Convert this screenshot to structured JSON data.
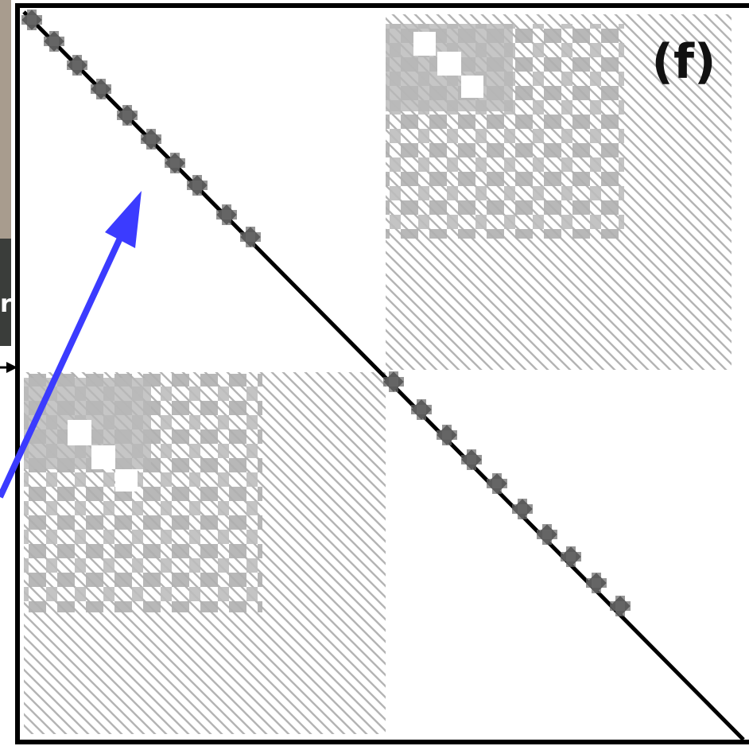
{
  "figure": {
    "panel_label": "(f)",
    "side_label": "r"
  }
}
